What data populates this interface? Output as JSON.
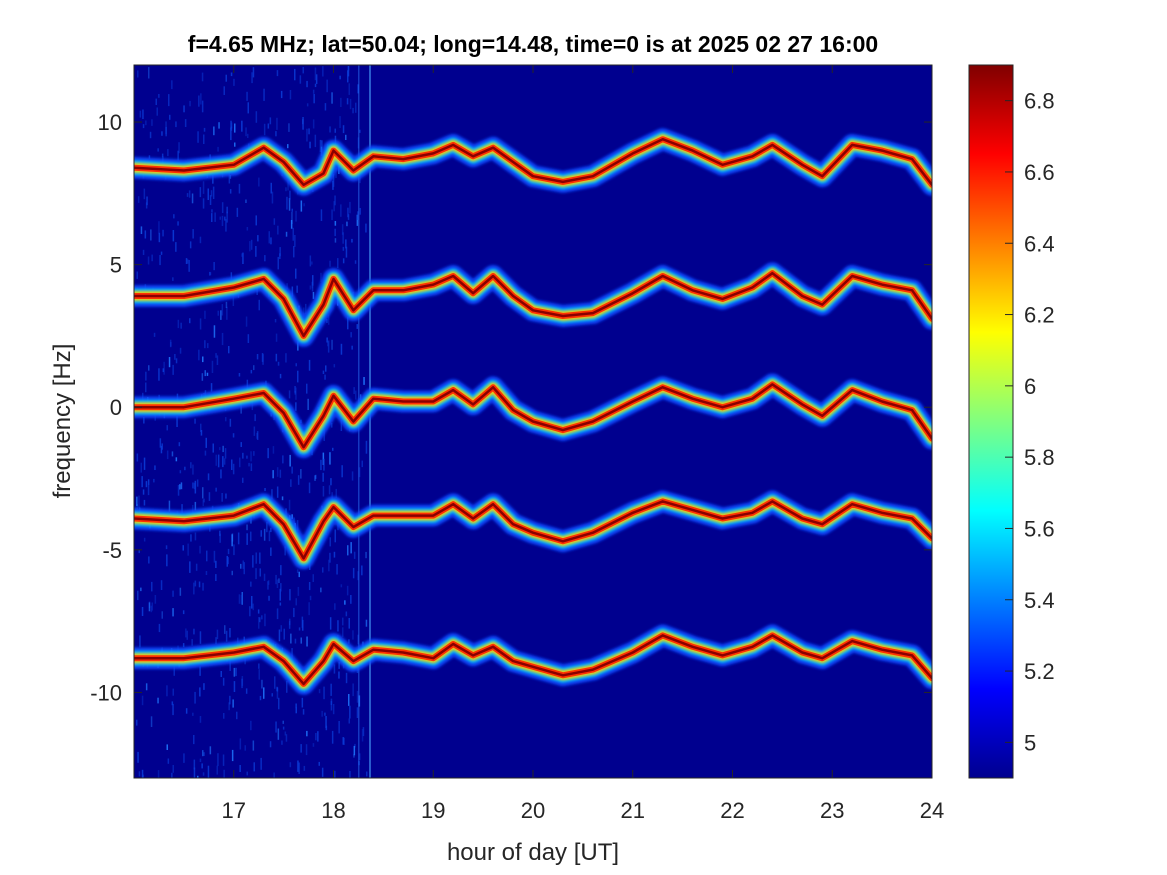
{
  "chart_data": {
    "type": "heatmap",
    "title": "f=4.65 MHz;  lat=50.04; long=14.48, time=0 is at 2025 02 27 16:00",
    "xlabel": "hour of day [UT]",
    "ylabel": "frequency [Hz]",
    "xlim": [
      16,
      24
    ],
    "ylim": [
      -13,
      12
    ],
    "xticks": [
      17,
      18,
      19,
      20,
      21,
      22,
      23,
      24
    ],
    "yticks": [
      10,
      5,
      0,
      -5,
      -10
    ],
    "colorbar": {
      "range": [
        4.9,
        6.9
      ],
      "ticks": [
        6.8,
        6.6,
        6.4,
        6.2,
        6,
        5.8,
        5.6,
        5.4,
        5.2,
        5
      ],
      "colormap": "jet",
      "colors": [
        "#00008f",
        "#0000ff",
        "#00ffff",
        "#ffff00",
        "#ff0000",
        "#800000"
      ]
    },
    "background_color": "#00008f",
    "series": [
      {
        "values": [
          [
            16.0,
            8.4
          ],
          [
            16.5,
            8.3
          ],
          [
            17.0,
            8.5
          ],
          [
            17.3,
            9.1
          ],
          [
            17.5,
            8.6
          ],
          [
            17.7,
            7.8
          ],
          [
            17.9,
            8.2
          ],
          [
            18.0,
            9.0
          ],
          [
            18.2,
            8.3
          ],
          [
            18.4,
            8.8
          ],
          [
            18.7,
            8.7
          ],
          [
            19.0,
            8.9
          ],
          [
            19.2,
            9.2
          ],
          [
            19.4,
            8.8
          ],
          [
            19.6,
            9.1
          ],
          [
            19.8,
            8.6
          ],
          [
            20.0,
            8.1
          ],
          [
            20.3,
            7.9
          ],
          [
            20.6,
            8.1
          ],
          [
            21.0,
            8.9
          ],
          [
            21.3,
            9.4
          ],
          [
            21.6,
            9.0
          ],
          [
            21.9,
            8.5
          ],
          [
            22.2,
            8.8
          ],
          [
            22.4,
            9.2
          ],
          [
            22.7,
            8.5
          ],
          [
            22.9,
            8.1
          ],
          [
            23.2,
            9.2
          ],
          [
            23.5,
            9.0
          ],
          [
            23.8,
            8.7
          ],
          [
            24.0,
            7.8
          ]
        ]
      },
      {
        "values": [
          [
            16.0,
            3.9
          ],
          [
            16.5,
            3.9
          ],
          [
            17.0,
            4.2
          ],
          [
            17.3,
            4.5
          ],
          [
            17.5,
            3.8
          ],
          [
            17.7,
            2.5
          ],
          [
            17.9,
            3.6
          ],
          [
            18.0,
            4.5
          ],
          [
            18.2,
            3.4
          ],
          [
            18.4,
            4.1
          ],
          [
            18.7,
            4.1
          ],
          [
            19.0,
            4.3
          ],
          [
            19.2,
            4.6
          ],
          [
            19.4,
            4.0
          ],
          [
            19.6,
            4.6
          ],
          [
            19.8,
            3.9
          ],
          [
            20.0,
            3.4
          ],
          [
            20.3,
            3.2
          ],
          [
            20.6,
            3.3
          ],
          [
            21.0,
            4.0
          ],
          [
            21.3,
            4.6
          ],
          [
            21.6,
            4.1
          ],
          [
            21.9,
            3.8
          ],
          [
            22.2,
            4.2
          ],
          [
            22.4,
            4.7
          ],
          [
            22.7,
            3.9
          ],
          [
            22.9,
            3.6
          ],
          [
            23.2,
            4.6
          ],
          [
            23.5,
            4.3
          ],
          [
            23.8,
            4.1
          ],
          [
            24.0,
            3.1
          ]
        ]
      },
      {
        "values": [
          [
            16.0,
            0.0
          ],
          [
            16.5,
            0.0
          ],
          [
            17.0,
            0.3
          ],
          [
            17.3,
            0.5
          ],
          [
            17.5,
            -0.2
          ],
          [
            17.7,
            -1.4
          ],
          [
            17.9,
            -0.3
          ],
          [
            18.0,
            0.4
          ],
          [
            18.2,
            -0.5
          ],
          [
            18.4,
            0.3
          ],
          [
            18.7,
            0.2
          ],
          [
            19.0,
            0.2
          ],
          [
            19.2,
            0.6
          ],
          [
            19.4,
            0.1
          ],
          [
            19.6,
            0.7
          ],
          [
            19.8,
            -0.1
          ],
          [
            20.0,
            -0.5
          ],
          [
            20.3,
            -0.8
          ],
          [
            20.6,
            -0.5
          ],
          [
            21.0,
            0.2
          ],
          [
            21.3,
            0.7
          ],
          [
            21.6,
            0.3
          ],
          [
            21.9,
            0.0
          ],
          [
            22.2,
            0.3
          ],
          [
            22.4,
            0.8
          ],
          [
            22.7,
            0.1
          ],
          [
            22.9,
            -0.3
          ],
          [
            23.2,
            0.6
          ],
          [
            23.5,
            0.2
          ],
          [
            23.8,
            -0.1
          ],
          [
            24.0,
            -1.1
          ]
        ]
      },
      {
        "values": [
          [
            16.0,
            -3.9
          ],
          [
            16.5,
            -4.0
          ],
          [
            17.0,
            -3.8
          ],
          [
            17.3,
            -3.4
          ],
          [
            17.5,
            -4.1
          ],
          [
            17.7,
            -5.3
          ],
          [
            17.9,
            -4.0
          ],
          [
            18.0,
            -3.5
          ],
          [
            18.2,
            -4.2
          ],
          [
            18.4,
            -3.8
          ],
          [
            18.7,
            -3.8
          ],
          [
            19.0,
            -3.8
          ],
          [
            19.2,
            -3.4
          ],
          [
            19.4,
            -3.9
          ],
          [
            19.6,
            -3.4
          ],
          [
            19.8,
            -4.1
          ],
          [
            20.0,
            -4.4
          ],
          [
            20.3,
            -4.7
          ],
          [
            20.6,
            -4.4
          ],
          [
            21.0,
            -3.7
          ],
          [
            21.3,
            -3.3
          ],
          [
            21.6,
            -3.6
          ],
          [
            21.9,
            -3.9
          ],
          [
            22.2,
            -3.7
          ],
          [
            22.4,
            -3.3
          ],
          [
            22.7,
            -3.9
          ],
          [
            22.9,
            -4.1
          ],
          [
            23.2,
            -3.4
          ],
          [
            23.5,
            -3.7
          ],
          [
            23.8,
            -3.9
          ],
          [
            24.0,
            -4.6
          ]
        ]
      },
      {
        "values": [
          [
            16.0,
            -8.8
          ],
          [
            16.5,
            -8.8
          ],
          [
            17.0,
            -8.6
          ],
          [
            17.3,
            -8.4
          ],
          [
            17.5,
            -8.9
          ],
          [
            17.7,
            -9.7
          ],
          [
            17.9,
            -8.9
          ],
          [
            18.0,
            -8.3
          ],
          [
            18.2,
            -8.9
          ],
          [
            18.4,
            -8.5
          ],
          [
            18.7,
            -8.6
          ],
          [
            19.0,
            -8.8
          ],
          [
            19.2,
            -8.3
          ],
          [
            19.4,
            -8.7
          ],
          [
            19.6,
            -8.4
          ],
          [
            19.8,
            -8.9
          ],
          [
            20.0,
            -9.1
          ],
          [
            20.3,
            -9.4
          ],
          [
            20.6,
            -9.2
          ],
          [
            21.0,
            -8.6
          ],
          [
            21.3,
            -8.0
          ],
          [
            21.6,
            -8.4
          ],
          [
            21.9,
            -8.7
          ],
          [
            22.2,
            -8.4
          ],
          [
            22.4,
            -8.0
          ],
          [
            22.7,
            -8.6
          ],
          [
            22.9,
            -8.8
          ],
          [
            23.2,
            -8.2
          ],
          [
            23.5,
            -8.5
          ],
          [
            23.8,
            -8.7
          ],
          [
            24.0,
            -9.5
          ]
        ]
      }
    ]
  }
}
